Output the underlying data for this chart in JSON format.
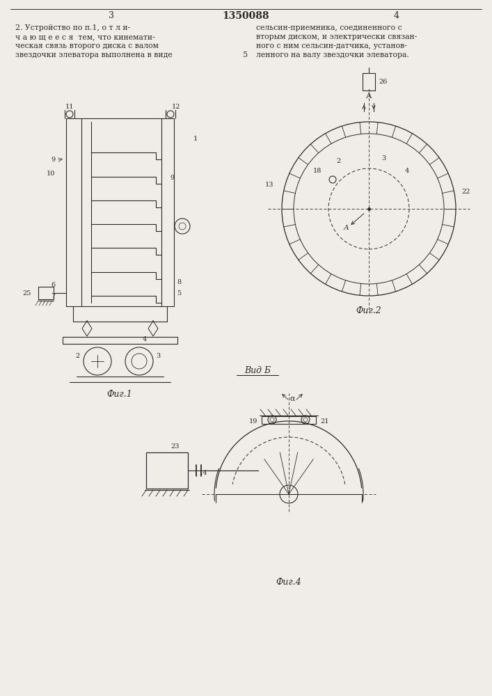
{
  "bg_color": "#f0ede8",
  "line_color": "#2a2a2a",
  "page_num_left": "3",
  "page_num_center": "1350088",
  "page_num_right": "4",
  "fig1_caption": "Фиг.1",
  "fig2_caption": "Фиг.2",
  "fig4_caption": "Фиг.4",
  "vid_b_label": "Вид Б"
}
